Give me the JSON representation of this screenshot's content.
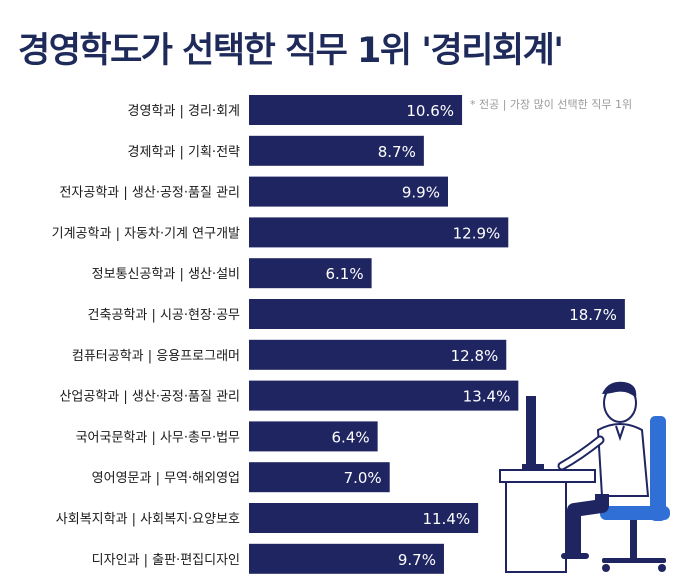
{
  "title": "경영학도가 선택한 직무 1위 '경리회계'",
  "note": "* 전공 | 가장 많이 선택한 직무 1위",
  "chart_data": {
    "type": "bar",
    "orientation": "horizontal",
    "title": "경영학도가 선택한 직무 1위 '경리회계'",
    "categories": [
      "경영학과 | 경리·회계",
      "경제학과 | 기획·전략",
      "전자공학과 | 생산·공정·품질 관리",
      "기계공학과 | 자동차·기계 연구개발",
      "정보통신공학과 | 생산·설비",
      "건축공학과 | 시공·현장·공무",
      "컴퓨터공학과 | 응용프로그래머",
      "산업공학과 | 생산·공정·품질 관리",
      "국어국문학과 | 사무·총무·법무",
      "영어영문과 | 무역·해외영업",
      "사회복지학과 | 사회복지·요양보호",
      "디자인과 | 출판·편집디자인"
    ],
    "values": [
      10.6,
      8.7,
      9.9,
      12.9,
      6.1,
      18.7,
      12.8,
      13.4,
      6.4,
      7.0,
      11.4,
      9.7
    ],
    "labels": [
      "10.6%",
      "8.7%",
      "9.9%",
      "12.9%",
      "6.1%",
      "18.7%",
      "12.8%",
      "13.4%",
      "6.4%",
      "7.0%",
      "11.4%",
      "9.7%"
    ],
    "bar_color": "#1e2561",
    "label_color": "#ffffff",
    "grid": false,
    "legend": "none"
  }
}
